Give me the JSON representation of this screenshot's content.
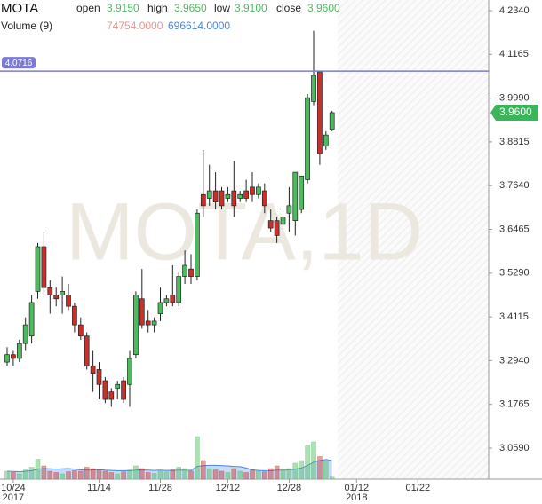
{
  "chart_data": {
    "type": "candlestick",
    "title": "MOTA",
    "watermark": "MOTA,1D",
    "ohlc_legend": [
      {
        "name": "open",
        "value": 3.915,
        "label": "3.9150"
      },
      {
        "name": "high",
        "value": 3.965,
        "label": "3.9650"
      },
      {
        "name": "low",
        "value": 3.91,
        "label": "3.9100"
      },
      {
        "name": "close",
        "value": 3.96,
        "label": "3.9600"
      }
    ],
    "volume_legend": {
      "name": "Volume (9)",
      "items": [
        {
          "value": 74754,
          "label": "74754.0000",
          "color": "#e8968e"
        },
        {
          "value": 696614,
          "label": "696614.0000",
          "color": "#4a86d8"
        }
      ]
    },
    "crosshair": {
      "value": 4.0716,
      "label": "4.0716",
      "color": "#7b7bd6"
    },
    "last_price": {
      "value": 3.96,
      "label": "3.9600",
      "color": "#3cb55a"
    },
    "up_color": "#4cbb5e",
    "down_color": "#c9302c",
    "open": [
      3.29,
      3.31,
      3.3,
      3.34,
      3.36,
      3.48,
      3.6,
      3.49,
      3.47,
      3.47,
      3.47,
      3.44,
      3.39,
      3.36,
      3.28,
      3.27,
      3.24,
      3.21,
      3.22,
      3.24,
      3.23,
      3.31,
      3.46,
      3.4,
      3.39,
      3.42,
      3.45,
      3.47,
      3.45,
      3.52,
      3.54,
      3.52,
      3.74,
      3.73,
      3.75,
      3.75,
      3.73,
      3.75,
      3.73,
      3.75,
      3.76,
      3.74,
      3.75,
      3.67,
      3.67,
      3.66,
      3.69,
      3.67,
      3.7,
      3.78,
      3.99,
      4.07,
      3.87,
      3.915
    ],
    "high": [
      3.33,
      3.32,
      3.35,
      3.41,
      3.47,
      3.61,
      3.64,
      3.51,
      3.49,
      3.52,
      3.5,
      3.45,
      3.41,
      3.37,
      3.32,
      3.29,
      3.25,
      3.22,
      3.24,
      3.25,
      3.32,
      3.48,
      3.54,
      3.43,
      3.41,
      3.49,
      3.47,
      3.55,
      3.53,
      3.59,
      3.58,
      3.7,
      3.86,
      3.82,
      3.8,
      3.76,
      3.76,
      3.83,
      3.75,
      3.78,
      3.8,
      3.77,
      3.77,
      3.7,
      3.68,
      3.7,
      3.76,
      3.8,
      3.79,
      4.01,
      4.18,
      4.07,
      3.91,
      3.965
    ],
    "low": [
      3.28,
      3.28,
      3.29,
      3.32,
      3.34,
      3.46,
      3.47,
      3.42,
      3.44,
      3.42,
      3.43,
      3.37,
      3.35,
      3.27,
      3.21,
      3.19,
      3.18,
      3.17,
      3.19,
      3.18,
      3.17,
      3.3,
      3.38,
      3.37,
      3.37,
      3.4,
      3.44,
      3.44,
      3.44,
      3.5,
      3.5,
      3.51,
      3.68,
      3.71,
      3.7,
      3.7,
      3.72,
      3.68,
      3.72,
      3.72,
      3.72,
      3.73,
      3.69,
      3.64,
      3.61,
      3.64,
      3.64,
      3.63,
      3.69,
      3.77,
      3.98,
      3.82,
      3.86,
      3.91
    ],
    "close": [
      3.31,
      3.3,
      3.34,
      3.39,
      3.45,
      3.6,
      3.49,
      3.47,
      3.46,
      3.48,
      3.44,
      3.39,
      3.36,
      3.28,
      3.26,
      3.23,
      3.19,
      3.19,
      3.23,
      3.19,
      3.3,
      3.47,
      3.39,
      3.39,
      3.4,
      3.45,
      3.46,
      3.45,
      3.52,
      3.55,
      3.52,
      3.69,
      3.71,
      3.75,
      3.72,
      3.71,
      3.74,
      3.71,
      3.74,
      3.73,
      3.74,
      3.76,
      3.71,
      3.65,
      3.63,
      3.68,
      3.71,
      3.8,
      3.79,
      4.0,
      4.06,
      3.85,
      3.9,
      3.96
    ],
    "volume": [
      300000,
      250000,
      200000,
      350000,
      450000,
      750000,
      500000,
      300000,
      250000,
      200000,
      280000,
      320000,
      300000,
      450000,
      400000,
      350000,
      300000,
      250000,
      200000,
      280000,
      350000,
      500000,
      400000,
      250000,
      220000,
      300000,
      280000,
      350000,
      450000,
      400000,
      300000,
      1600000,
      700000,
      400000,
      350000,
      300000,
      250000,
      400000,
      300000,
      250000,
      350000,
      300000,
      280000,
      400000,
      500000,
      350000,
      400000,
      600000,
      700000,
      1250000,
      1400000,
      850000,
      650000,
      74754
    ],
    "volume_ma": [
      300000,
      290000,
      280000,
      300000,
      320000,
      380000,
      400000,
      390000,
      380000,
      390000,
      400000,
      380000,
      350000,
      340000,
      350000,
      360000,
      340000,
      330000,
      320000,
      320000,
      320000,
      340000,
      350000,
      340000,
      330000,
      340000,
      330000,
      330000,
      340000,
      340000,
      330000,
      480000,
      510000,
      520000,
      520000,
      510000,
      500000,
      480000,
      470000,
      420000,
      350000,
      330000,
      320000,
      320000,
      340000,
      340000,
      350000,
      380000,
      420000,
      520000,
      640000,
      700000,
      740000,
      696614
    ],
    "volume_ylim": [
      0,
      2000000
    ],
    "ylim": [
      2.9756,
      4.2626
    ],
    "yticks": [
      {
        "value": 4.234,
        "label": "4.2340"
      },
      {
        "value": 4.1165,
        "label": "4.1165"
      },
      {
        "value": 3.999,
        "label": "3.9990"
      },
      {
        "value": 3.8815,
        "label": "3.8815"
      },
      {
        "value": 3.764,
        "label": "3.7640"
      },
      {
        "value": 3.6465,
        "label": "3.6465"
      },
      {
        "value": 3.529,
        "label": "3.5290"
      },
      {
        "value": 3.4115,
        "label": "3.4115"
      },
      {
        "value": 3.294,
        "label": "3.2940"
      },
      {
        "value": 3.1765,
        "label": "3.1765"
      },
      {
        "value": 3.059,
        "label": "3.0590"
      }
    ],
    "xlim": [
      -1.16,
      78.55
    ],
    "xticks": [
      {
        "value": 1,
        "label": "10/24"
      },
      {
        "value": 15,
        "label": "11/14"
      },
      {
        "value": 25,
        "label": "11/28"
      },
      {
        "value": 36,
        "label": "12/12"
      },
      {
        "value": 46,
        "label": "12/28"
      },
      {
        "value": 57,
        "label": "01/12"
      },
      {
        "value": 67,
        "label": "01/22"
      }
    ],
    "year_labels": [
      {
        "value": 1,
        "label": "2017"
      },
      {
        "value": 57,
        "label": "2018"
      }
    ]
  }
}
